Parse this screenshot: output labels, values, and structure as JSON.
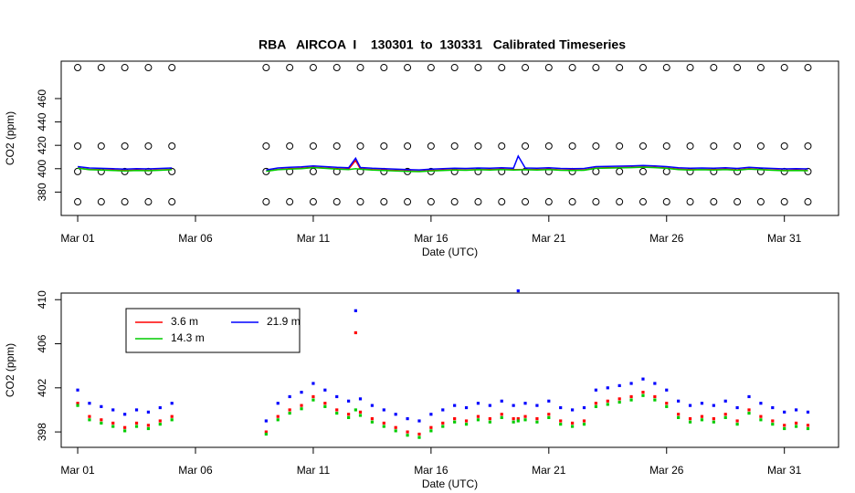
{
  "chart_data": [
    {
      "type": "scatter",
      "title": "RBA   AIRCOA  I    130301  to  130331   Calibrated Timeseries",
      "xlabel": "Date (UTC)",
      "ylabel": "CO2 (ppm)",
      "xlim": [
        0.3,
        33.3
      ],
      "xticks": [
        {
          "value": 1,
          "label": "Mar 01"
        },
        {
          "value": 6,
          "label": "Mar 06"
        },
        {
          "value": 11,
          "label": "Mar 11"
        },
        {
          "value": 16,
          "label": "Mar 16"
        },
        {
          "value": 21,
          "label": "Mar 21"
        },
        {
          "value": 26,
          "label": "Mar 26"
        },
        {
          "value": 31,
          "label": "Mar 31"
        }
      ],
      "ylim": [
        360,
        492
      ],
      "yticks": [
        380,
        400,
        420,
        440,
        460
      ],
      "x": [
        1,
        2,
        3,
        4,
        5,
        9,
        10,
        11,
        12,
        13,
        14,
        15,
        16,
        17,
        18,
        19,
        20,
        21,
        22,
        23,
        24,
        25,
        26,
        27,
        28,
        29,
        30,
        31,
        32
      ],
      "series": [
        {
          "color": "#000000",
          "values": [
            486.5,
            486.5,
            486.5,
            486.5,
            486.5,
            486.5,
            486.5,
            486.5,
            486.5,
            486.5,
            486.5,
            486.5,
            486.5,
            486.5,
            486.5,
            486.5,
            486.5,
            486.5,
            486.5,
            486.5,
            486.5,
            486.5,
            486.5,
            486.5,
            486.5,
            486.5,
            486.5,
            486.5,
            486.5
          ]
        },
        {
          "color": "#000000",
          "values": [
            419.4,
            419.4,
            419.4,
            419.4,
            419.4,
            419.4,
            419.4,
            419.4,
            419.4,
            419.4,
            419.4,
            419.4,
            419.4,
            419.4,
            419.4,
            419.4,
            419.4,
            419.4,
            419.4,
            419.4,
            419.4,
            419.4,
            419.4,
            419.4,
            419.4,
            419.4,
            419.4,
            419.4,
            419.4
          ]
        },
        {
          "color": "#000000",
          "values": [
            397.6,
            397.6,
            397.6,
            397.6,
            397.6,
            397.6,
            397.6,
            397.6,
            397.6,
            397.6,
            397.6,
            397.6,
            397.6,
            397.6,
            397.6,
            397.6,
            397.6,
            397.6,
            397.6,
            397.6,
            397.6,
            397.6,
            397.6,
            397.6,
            397.6,
            397.6,
            397.6,
            397.6,
            397.6
          ]
        },
        {
          "color": "#000000",
          "values": [
            371.7,
            371.7,
            371.7,
            371.7,
            371.7,
            371.7,
            371.7,
            371.7,
            371.7,
            371.7,
            371.7,
            371.7,
            371.7,
            371.7,
            371.7,
            371.7,
            371.7,
            371.7,
            371.7,
            371.7,
            371.7,
            371.7,
            371.7,
            371.7,
            371.7,
            371.7,
            371.7,
            371.7,
            371.7
          ]
        }
      ]
    },
    {
      "type": "scatter",
      "xlabel": "Date (UTC)",
      "ylabel": "CO2 (ppm)",
      "xlim": [
        0.3,
        33.3
      ],
      "xticks": [
        {
          "value": 1,
          "label": "Mar 01"
        },
        {
          "value": 6,
          "label": "Mar 06"
        },
        {
          "value": 11,
          "label": "Mar 11"
        },
        {
          "value": 16,
          "label": "Mar 16"
        },
        {
          "value": 21,
          "label": "Mar 21"
        },
        {
          "value": 26,
          "label": "Mar 26"
        },
        {
          "value": 31,
          "label": "Mar 31"
        }
      ],
      "ylim": [
        396.6,
        410.6
      ],
      "yticks": [
        398,
        402,
        406,
        410
      ],
      "legend": "top-left",
      "x": [
        1,
        1.5,
        2,
        2.5,
        3,
        3.5,
        4,
        4.5,
        5,
        9,
        9.5,
        10,
        10.5,
        11,
        11.5,
        12,
        12.5,
        12.8,
        13,
        13.5,
        14,
        14.5,
        15,
        15.5,
        16,
        16.5,
        17,
        17.5,
        18,
        18.5,
        19,
        19.5,
        19.7,
        20,
        20.5,
        21,
        21.5,
        22,
        22.5,
        23,
        23.5,
        24,
        24.5,
        25,
        25.5,
        26,
        26.5,
        27,
        27.5,
        28,
        28.5,
        29,
        29.5,
        30,
        30.5,
        31,
        31.5,
        32
      ],
      "series": [
        {
          "name": "3.6 m",
          "color": "#ff0000",
          "values": [
            400.6,
            399.4,
            399.1,
            398.8,
            398.4,
            398.8,
            398.6,
            399.0,
            399.4,
            398.0,
            399.4,
            400.0,
            400.4,
            401.2,
            400.6,
            400.0,
            399.6,
            407.0,
            399.8,
            399.2,
            398.8,
            398.4,
            398.0,
            397.8,
            398.4,
            398.8,
            399.2,
            399.0,
            399.4,
            399.2,
            399.6,
            399.2,
            399.2,
            399.4,
            399.2,
            399.6,
            399.0,
            398.8,
            399.0,
            400.6,
            400.8,
            401.0,
            401.2,
            401.6,
            401.2,
            400.6,
            399.6,
            399.2,
            399.4,
            399.2,
            399.6,
            399.0,
            400.0,
            399.4,
            399.0,
            398.6,
            398.8,
            398.6
          ]
        },
        {
          "name": "14.3 m",
          "color": "#00cc00",
          "values": [
            400.4,
            399.1,
            398.8,
            398.5,
            398.1,
            398.5,
            398.3,
            398.7,
            399.1,
            397.8,
            399.1,
            399.7,
            400.1,
            400.9,
            400.3,
            399.7,
            399.3,
            400.0,
            399.5,
            398.9,
            398.5,
            398.1,
            397.7,
            397.5,
            398.1,
            398.5,
            398.9,
            398.7,
            399.1,
            398.9,
            399.3,
            398.9,
            399.0,
            399.1,
            398.9,
            399.3,
            398.7,
            398.5,
            398.7,
            400.3,
            400.5,
            400.7,
            400.9,
            401.3,
            400.9,
            400.3,
            399.3,
            398.9,
            399.1,
            398.9,
            399.3,
            398.7,
            399.7,
            399.1,
            398.7,
            398.3,
            398.5,
            398.3
          ]
        },
        {
          "name": "21.9 m",
          "color": "#0000ff",
          "values": [
            401.8,
            400.6,
            400.3,
            400.0,
            399.6,
            400.0,
            399.8,
            400.2,
            400.6,
            399.0,
            400.6,
            401.2,
            401.6,
            402.4,
            401.8,
            401.2,
            400.8,
            409.0,
            401.0,
            400.4,
            400.0,
            399.6,
            399.2,
            399.0,
            399.6,
            400.0,
            400.4,
            400.2,
            400.6,
            400.4,
            400.8,
            400.4,
            410.8,
            400.6,
            400.4,
            400.8,
            400.2,
            400.0,
            400.2,
            401.8,
            402.0,
            402.2,
            402.4,
            402.8,
            402.4,
            401.8,
            400.8,
            400.4,
            400.6,
            400.4,
            400.8,
            400.2,
            401.2,
            400.6,
            400.2,
            399.8,
            400.0,
            399.8
          ]
        }
      ]
    }
  ]
}
